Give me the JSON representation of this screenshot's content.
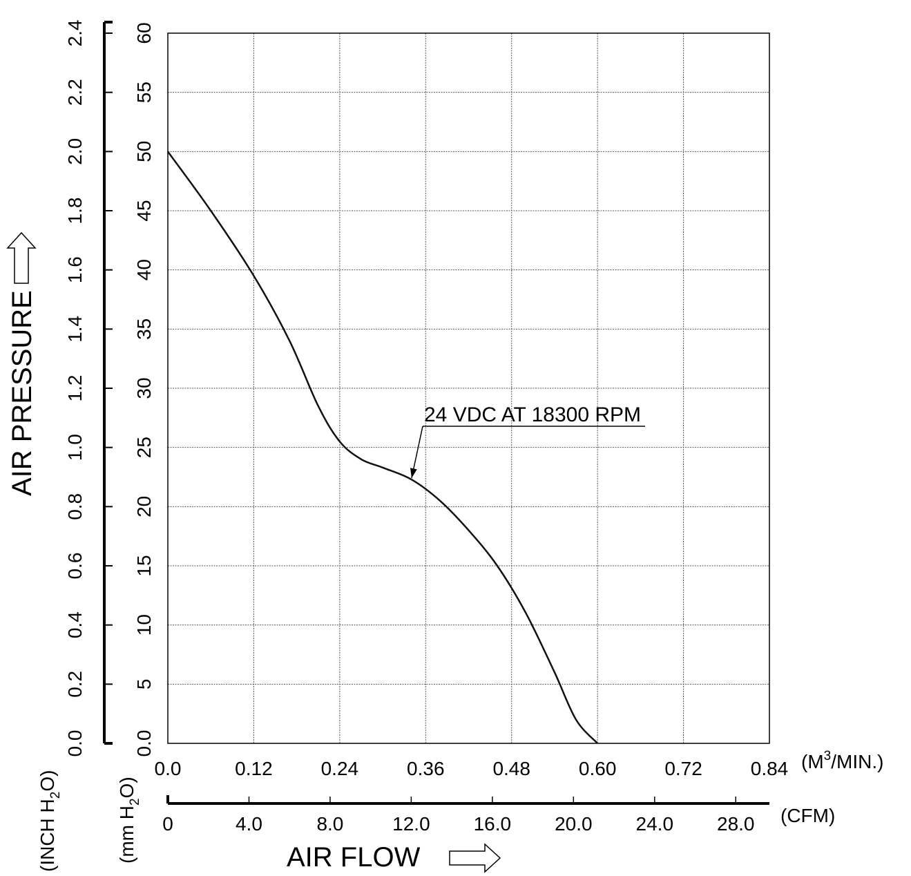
{
  "chart_data": {
    "type": "line",
    "x_primary": {
      "label": "AIR FLOW",
      "unit": "(M",
      "unit_sup": "3",
      "unit_rest": "/MIN.)",
      "range": [
        0,
        0.84
      ],
      "ticks": [
        "0.0",
        "0.12",
        "0.24",
        "0.36",
        "0.48",
        "0.60",
        "0.72",
        "0.84"
      ]
    },
    "x_secondary": {
      "unit": "(CFM)",
      "range": [
        0,
        29.66
      ],
      "ticks": [
        "0",
        "4.0",
        "8.0",
        "12.0",
        "16.0",
        "20.0",
        "24.0",
        "28.0"
      ]
    },
    "y_primary": {
      "label": "AIR PRESSURE",
      "unit": "(mm H",
      "unit_sub": "2",
      "unit_rest": "O)",
      "range": [
        0,
        60
      ],
      "ticks": [
        "0.0",
        "5",
        "10",
        "15",
        "20",
        "25",
        "30",
        "35",
        "40",
        "45",
        "50",
        "55",
        "60"
      ]
    },
    "y_secondary": {
      "unit": "(INCH H",
      "unit_sub": "2",
      "unit_rest": "O)",
      "range": [
        0,
        2.4
      ],
      "ticks": [
        "0.0",
        "0.2",
        "0.4",
        "0.6",
        "0.8",
        "1.0",
        "1.2",
        "1.4",
        "1.6",
        "1.8",
        "2.0",
        "2.2",
        "2.4"
      ]
    },
    "grid": true,
    "series": [
      {
        "name": "24 VDC AT 18300 RPM",
        "x": [
          0.0,
          0.06,
          0.12,
          0.17,
          0.21,
          0.24,
          0.27,
          0.3,
          0.34,
          0.38,
          0.42,
          0.46,
          0.5,
          0.54,
          0.57,
          0.6
        ],
        "y": [
          50.0,
          45.0,
          39.5,
          34.0,
          28.5,
          25.5,
          24.0,
          23.3,
          22.3,
          20.5,
          18.0,
          15.0,
          11.0,
          6.0,
          2.0,
          0.0
        ]
      }
    ],
    "annotation": {
      "text": "24 VDC AT 18300 RPM",
      "target": [
        0.34,
        22.3
      ]
    }
  }
}
